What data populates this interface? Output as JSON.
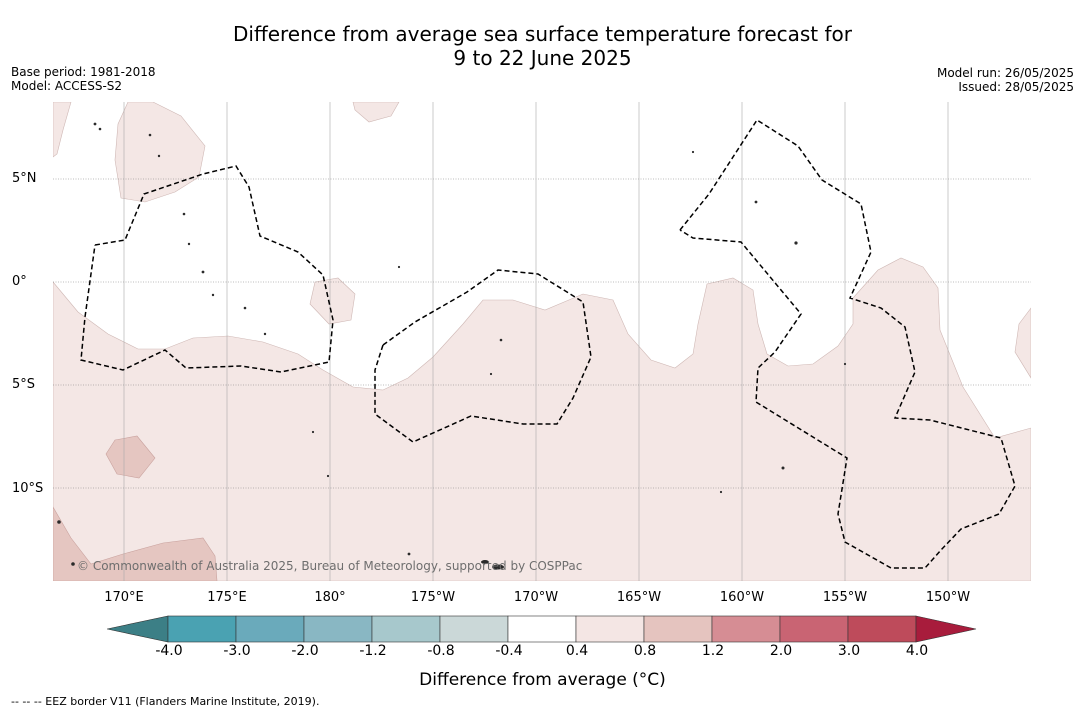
{
  "title": {
    "line1": "Difference from average sea surface temperature forecast for",
    "line2": "9 to 22 June 2025"
  },
  "meta_left": {
    "base_period": "Base period: 1981-2018",
    "model": "Model: ACCESS-S2"
  },
  "meta_right": {
    "model_run": "Model run: 26/05/2025",
    "issued": "Issued: 28/05/2025"
  },
  "lat_labels": [
    "5°N",
    "0°",
    "5°S",
    "10°S"
  ],
  "lon_labels": [
    "170°E",
    "175°E",
    "180°",
    "175°W",
    "170°W",
    "165°W",
    "160°W",
    "155°W",
    "150°W"
  ],
  "copyright": "© Commonwealth of Australia 2025, Bureau of Meteorology, supported by COSPPac",
  "colorbar": {
    "ticks": [
      "-4.0",
      "-3.0",
      "-2.0",
      "-1.2",
      "-0.8",
      "-0.4",
      "0.4",
      "0.8",
      "1.2",
      "2.0",
      "3.0",
      "4.0"
    ],
    "colors": [
      "#3c7f86",
      "#4aa2b2",
      "#6aaabb",
      "#89b7c3",
      "#a7c8cc",
      "#cbd8d8",
      "#ffffff",
      "#f4e6e4",
      "#e5c4bf",
      "#d68d94",
      "#c96473",
      "#be4b5b",
      "#a81c3c"
    ],
    "label": "Difference from average (°C)"
  },
  "legend_note": "-- -- -- EEZ border V11 (Flanders Marine Institute, 2019)."
}
